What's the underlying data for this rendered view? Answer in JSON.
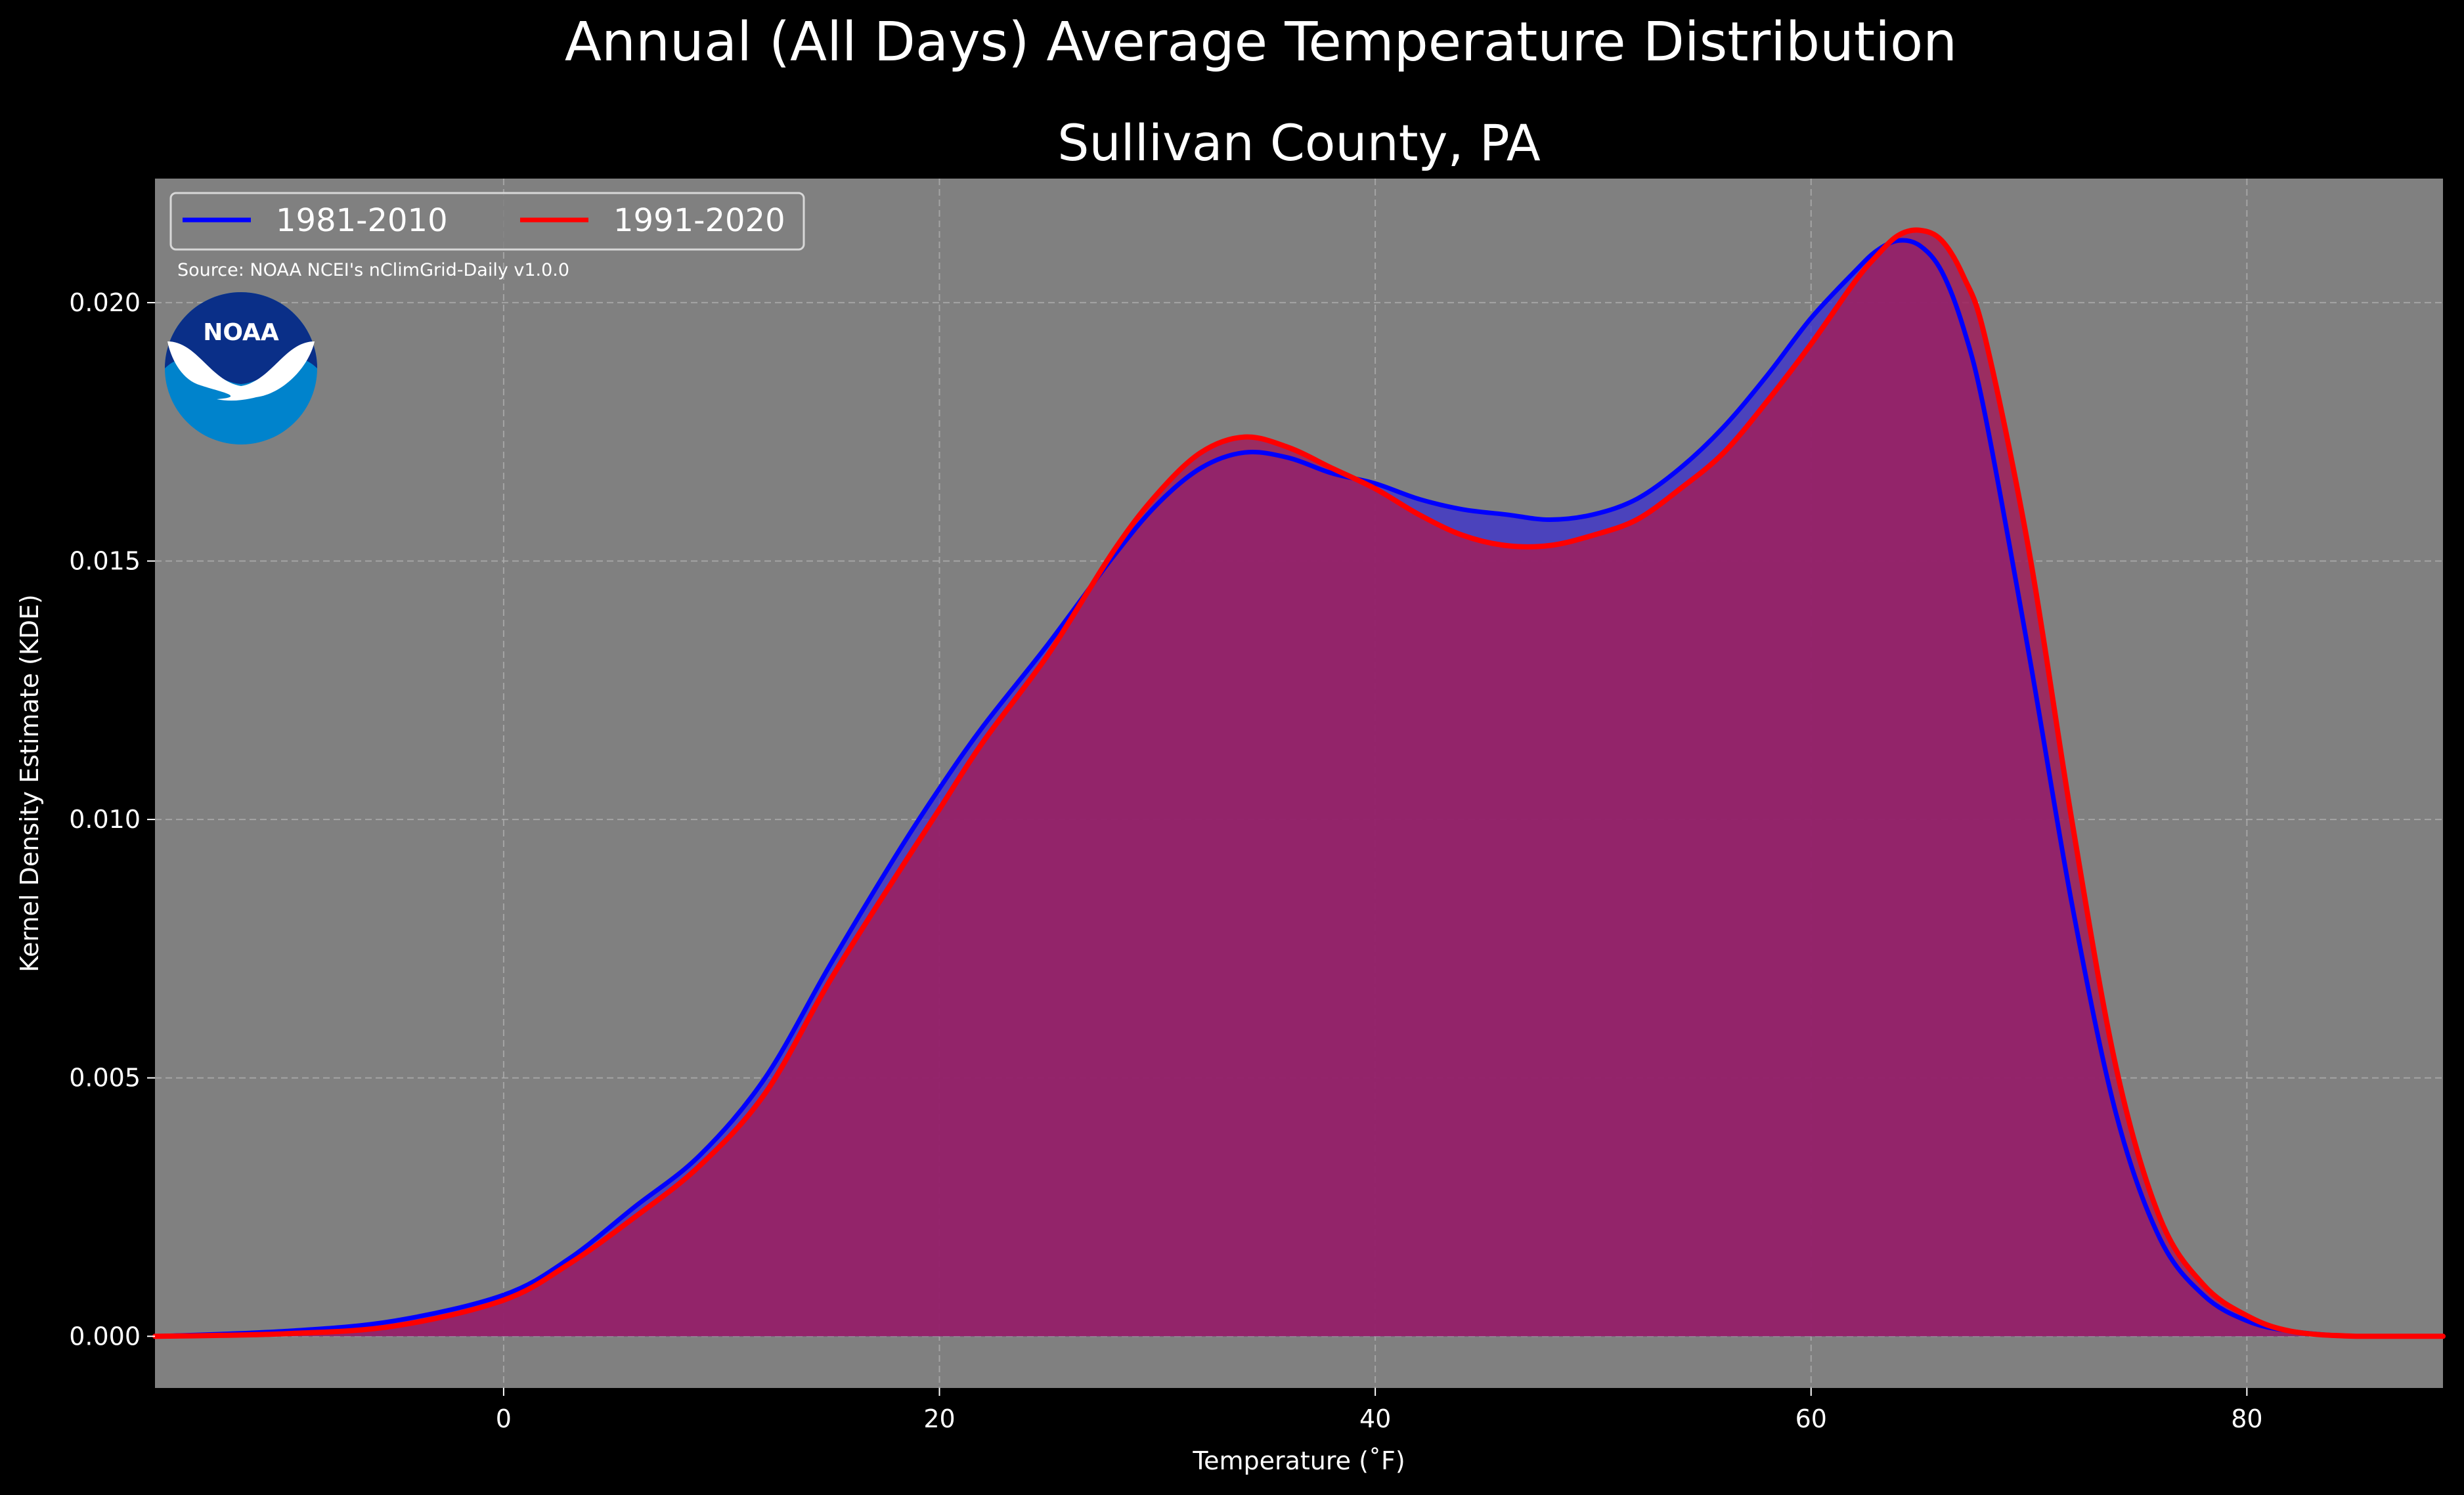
{
  "suptitle": "Annual (All Days) Average Temperature Distribution",
  "source_note": "Source: NOAA NCEI's nClimGrid-Daily v1.0.0",
  "logo_text": "NOAA",
  "colors": {
    "background": "#000000",
    "plot_background": "#808080",
    "series_1981": "#0000ff",
    "series_1991": "#ff0000",
    "fill_1981": "#3a2fd0",
    "fill_1991": "#a01e5c",
    "grid": "#b4b4b4",
    "logo_dark": "#0a2f88",
    "logo_light": "#0083cc"
  },
  "chart_data": {
    "type": "area",
    "title": "Sullivan County, PA",
    "xlabel": "Temperature ($^\\circ$F)",
    "xlabel_display": "Temperature (˚F)",
    "ylabel": "Kernel Density Estimate (KDE)",
    "xlim": [
      -16,
      89
    ],
    "ylim": [
      -0.001,
      0.0224
    ],
    "x_ticks": [
      0,
      20,
      40,
      60,
      80
    ],
    "x_tick_labels": [
      "0",
      "20",
      "40",
      "60",
      "80"
    ],
    "y_ticks": [
      0.0,
      0.005,
      0.01,
      0.015,
      0.02
    ],
    "y_tick_labels": [
      "0.000",
      "0.005",
      "0.010",
      "0.015",
      "0.020"
    ],
    "grid": true,
    "legend": {
      "position": "top-left",
      "columns": 2
    },
    "series": [
      {
        "name": "1981-2010",
        "x": [
          -16,
          -10,
          -5,
          0,
          3,
          6,
          9,
          12,
          15,
          18,
          20,
          22,
          25,
          28,
          30,
          32,
          34,
          36,
          38,
          40,
          42,
          44,
          46,
          48,
          50,
          52,
          54,
          56,
          58,
          60,
          62,
          63,
          64,
          65,
          66,
          67,
          68,
          70,
          72,
          74,
          76,
          78,
          80,
          82,
          85,
          89
        ],
        "y": [
          0.0,
          0.0001,
          0.0003,
          0.0008,
          0.0015,
          0.0025,
          0.0035,
          0.005,
          0.0072,
          0.0093,
          0.0106,
          0.0118,
          0.0134,
          0.0151,
          0.0161,
          0.0168,
          0.0171,
          0.017,
          0.0167,
          0.0165,
          0.0162,
          0.016,
          0.0159,
          0.0158,
          0.0159,
          0.0162,
          0.0168,
          0.0176,
          0.0186,
          0.0197,
          0.0206,
          0.021,
          0.0212,
          0.0211,
          0.0206,
          0.0195,
          0.0178,
          0.0132,
          0.0083,
          0.0043,
          0.0019,
          0.0008,
          0.0003,
          0.0001,
          0.0,
          0.0
        ]
      },
      {
        "name": "1991-2020",
        "x": [
          -16,
          -10,
          -5,
          0,
          3,
          6,
          9,
          12,
          15,
          18,
          20,
          22,
          25,
          28,
          30,
          32,
          34,
          36,
          38,
          40,
          42,
          44,
          46,
          48,
          50,
          52,
          54,
          56,
          58,
          60,
          62,
          63,
          64,
          65,
          66,
          67,
          68,
          70,
          72,
          74,
          76,
          78,
          80,
          82,
          85,
          89
        ],
        "y": [
          0.0,
          5e-05,
          0.0002,
          0.0007,
          0.0014,
          0.0023,
          0.0033,
          0.0047,
          0.0069,
          0.0089,
          0.0102,
          0.0115,
          0.0132,
          0.0152,
          0.0163,
          0.0171,
          0.0174,
          0.0172,
          0.0168,
          0.0164,
          0.0159,
          0.0155,
          0.0153,
          0.0153,
          0.0155,
          0.0158,
          0.0164,
          0.0171,
          0.0181,
          0.0192,
          0.0204,
          0.0209,
          0.0213,
          0.0214,
          0.0212,
          0.0205,
          0.0193,
          0.0152,
          0.0099,
          0.0052,
          0.0023,
          0.001,
          0.0004,
          0.0001,
          0.0,
          0.0
        ]
      }
    ]
  }
}
